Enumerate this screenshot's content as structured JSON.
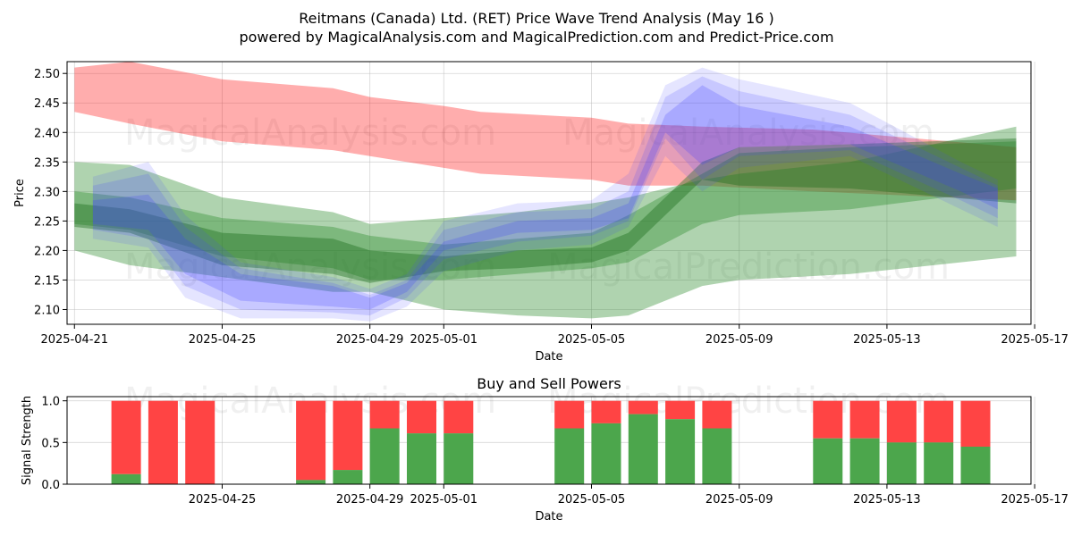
{
  "chart_data": [
    {
      "type": "area",
      "title_line1": "Reitmans (Canada) Ltd. (RET) Price Wave Trend Analysis (May 16 )",
      "title_line2": "powered by MagicalAnalysis.com and MagicalPrediction.com and Predict-Price.com",
      "xlabel": "Date",
      "ylabel": "Price",
      "ylim": [
        2.075,
        2.52
      ],
      "xlim_day": [
        -0.2,
        25.9
      ],
      "x_ticks": [
        {
          "day": 0,
          "label": "2025-04-21"
        },
        {
          "day": 4,
          "label": "2025-04-25"
        },
        {
          "day": 8,
          "label": "2025-04-29"
        },
        {
          "day": 10,
          "label": "2025-05-01"
        },
        {
          "day": 14,
          "label": "2025-05-05"
        },
        {
          "day": 18,
          "label": "2025-05-09"
        },
        {
          "day": 22,
          "label": "2025-05-13"
        },
        {
          "day": 26,
          "label": "2025-05-17"
        }
      ],
      "y_ticks": [
        2.1,
        2.15,
        2.2,
        2.25,
        2.3,
        2.35,
        2.4,
        2.45,
        2.5
      ],
      "grid": true,
      "watermarks": [
        "MagicalAnalysis.com",
        "MagicalPrediction.com"
      ],
      "bands": [
        {
          "name": "red-band",
          "color": "#ff0000",
          "opacity": 0.32,
          "x": [
            0,
            1.5,
            4,
            7,
            8,
            10,
            11,
            14,
            15,
            17,
            20,
            25.5
          ],
          "upper": [
            2.51,
            2.52,
            2.49,
            2.475,
            2.46,
            2.445,
            2.435,
            2.425,
            2.415,
            2.41,
            2.405,
            2.375
          ],
          "lower": [
            2.435,
            2.415,
            2.385,
            2.37,
            2.36,
            2.34,
            2.33,
            2.32,
            2.31,
            2.31,
            2.3,
            2.285
          ]
        },
        {
          "name": "light-green-band",
          "color": "#2e8b2e",
          "opacity": 0.38,
          "x": [
            0,
            1.5,
            4,
            7,
            8,
            10,
            12,
            14,
            15,
            17,
            18,
            21,
            25.5
          ],
          "upper": [
            2.35,
            2.345,
            2.29,
            2.265,
            2.245,
            2.255,
            2.265,
            2.28,
            2.29,
            2.32,
            2.33,
            2.35,
            2.41
          ],
          "lower": [
            2.2,
            2.175,
            2.155,
            2.13,
            2.13,
            2.1,
            2.09,
            2.085,
            2.09,
            2.14,
            2.15,
            2.16,
            2.19
          ]
        },
        {
          "name": "mid-green-band",
          "color": "#2e8b2e",
          "opacity": 0.38,
          "x": [
            0,
            1.5,
            4,
            7,
            8,
            10,
            12,
            14,
            15,
            17,
            18,
            21,
            25.5
          ],
          "upper": [
            2.3,
            2.29,
            2.255,
            2.24,
            2.225,
            2.21,
            2.22,
            2.23,
            2.26,
            2.33,
            2.365,
            2.375,
            2.385
          ],
          "lower": [
            2.245,
            2.235,
            2.19,
            2.17,
            2.15,
            2.15,
            2.16,
            2.17,
            2.18,
            2.245,
            2.26,
            2.27,
            2.305
          ]
        },
        {
          "name": "dark-green-band",
          "color": "#1a6b1a",
          "opacity": 0.4,
          "x": [
            0,
            1.5,
            4,
            7,
            8,
            10,
            12,
            14,
            15,
            17,
            18,
            21,
            25.5
          ],
          "upper": [
            2.28,
            2.27,
            2.23,
            2.22,
            2.2,
            2.19,
            2.2,
            2.205,
            2.23,
            2.35,
            2.375,
            2.38,
            2.39
          ],
          "lower": [
            2.24,
            2.23,
            2.175,
            2.16,
            2.145,
            2.165,
            2.17,
            2.18,
            2.2,
            2.32,
            2.31,
            2.305,
            2.28
          ]
        },
        {
          "name": "blue-band-1",
          "color": "#4a4aff",
          "opacity": 0.14,
          "x": [
            0.5,
            2,
            3,
            4.5,
            7,
            8,
            9,
            10,
            12,
            14,
            15,
            16,
            17,
            18,
            21,
            24,
            25
          ],
          "upper": [
            2.325,
            2.35,
            2.26,
            2.18,
            2.155,
            2.135,
            2.16,
            2.25,
            2.28,
            2.285,
            2.33,
            2.48,
            2.51,
            2.49,
            2.45,
            2.35,
            2.32
          ],
          "lower": [
            2.22,
            2.205,
            2.12,
            2.085,
            2.085,
            2.08,
            2.105,
            2.165,
            2.2,
            2.21,
            2.24,
            2.36,
            2.3,
            2.34,
            2.36,
            2.27,
            2.24
          ]
        },
        {
          "name": "blue-band-2",
          "color": "#4a4aff",
          "opacity": 0.18,
          "x": [
            0.5,
            2,
            3,
            4.5,
            7,
            8,
            9,
            10,
            12,
            14,
            15,
            16,
            17,
            18,
            21,
            24,
            25
          ],
          "upper": [
            2.31,
            2.33,
            2.24,
            2.17,
            2.145,
            2.125,
            2.15,
            2.235,
            2.265,
            2.27,
            2.3,
            2.46,
            2.495,
            2.47,
            2.43,
            2.34,
            2.31
          ],
          "lower": [
            2.235,
            2.22,
            2.14,
            2.1,
            2.095,
            2.09,
            2.12,
            2.185,
            2.215,
            2.225,
            2.25,
            2.39,
            2.32,
            2.36,
            2.37,
            2.285,
            2.255
          ]
        },
        {
          "name": "blue-band-3",
          "color": "#3a3aff",
          "opacity": 0.22,
          "x": [
            0.5,
            2,
            3,
            4.5,
            7,
            8,
            9,
            10,
            12,
            14,
            15,
            16,
            17,
            18,
            21,
            24,
            25
          ],
          "upper": [
            2.285,
            2.295,
            2.22,
            2.16,
            2.14,
            2.12,
            2.145,
            2.215,
            2.25,
            2.255,
            2.28,
            2.43,
            2.48,
            2.445,
            2.41,
            2.33,
            2.305
          ],
          "lower": [
            2.245,
            2.235,
            2.16,
            2.115,
            2.105,
            2.1,
            2.13,
            2.2,
            2.23,
            2.235,
            2.255,
            2.4,
            2.345,
            2.375,
            2.38,
            2.3,
            2.27
          ]
        }
      ]
    },
    {
      "type": "bar",
      "title": "Buy and Sell Powers",
      "xlabel": "Date",
      "ylabel": "Signal Strength",
      "ylim": [
        0,
        1.05
      ],
      "xlim_day": [
        -0.2,
        25.9
      ],
      "y_ticks": [
        0.0,
        0.5,
        1.0
      ],
      "x_ticks": [
        {
          "day": 4,
          "label": "2025-04-25"
        },
        {
          "day": 8,
          "label": "2025-04-29"
        },
        {
          "day": 10,
          "label": "2025-05-01"
        },
        {
          "day": 14,
          "label": "2025-05-05"
        },
        {
          "day": 18,
          "label": "2025-05-09"
        },
        {
          "day": 22,
          "label": "2025-05-13"
        },
        {
          "day": 26,
          "label": "2025-05-17"
        }
      ],
      "grid": true,
      "watermarks": [
        "MagicalAnalysis.com",
        "MagicalPrediction.com"
      ],
      "buy_color": "#4ca64c",
      "sell_color": "#ff4444",
      "bars": [
        {
          "day": 1.4,
          "buy": 0.12
        },
        {
          "day": 2.4,
          "buy": 0.0
        },
        {
          "day": 3.4,
          "buy": 0.0
        },
        {
          "day": 6.4,
          "buy": 0.05
        },
        {
          "day": 7.4,
          "buy": 0.17
        },
        {
          "day": 8.4,
          "buy": 0.67
        },
        {
          "day": 9.4,
          "buy": 0.61
        },
        {
          "day": 10.4,
          "buy": 0.61
        },
        {
          "day": 13.4,
          "buy": 0.67
        },
        {
          "day": 14.4,
          "buy": 0.73
        },
        {
          "day": 15.4,
          "buy": 0.84
        },
        {
          "day": 16.4,
          "buy": 0.78
        },
        {
          "day": 17.4,
          "buy": 0.67
        },
        {
          "day": 20.4,
          "buy": 0.55
        },
        {
          "day": 21.4,
          "buy": 0.55
        },
        {
          "day": 22.4,
          "buy": 0.5
        },
        {
          "day": 23.4,
          "buy": 0.5
        },
        {
          "day": 24.4,
          "buy": 0.45
        }
      ]
    }
  ]
}
